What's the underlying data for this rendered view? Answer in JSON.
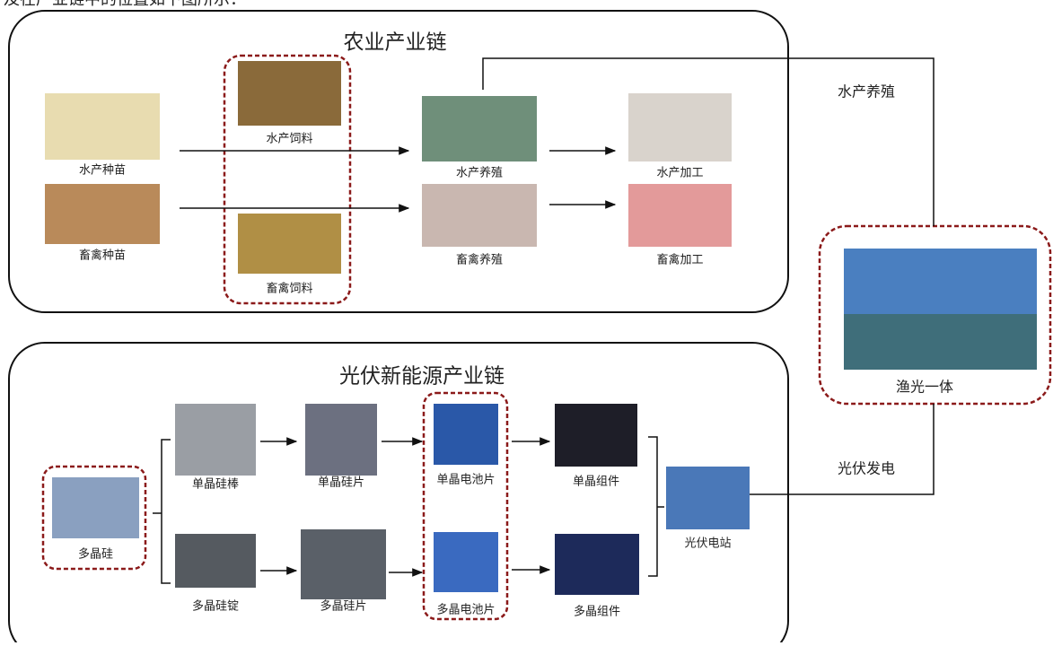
{
  "header": "及在产业链中的位置如下图所示：",
  "agriculture": {
    "title": "农业产业链",
    "nodes": [
      "水产种苗",
      "畜禽种苗",
      "水产饲料",
      "畜禽饲料",
      "水产养殖",
      "畜禽养殖",
      "水产加工",
      "畜禽加工"
    ]
  },
  "pv": {
    "title": "光伏新能源产业链",
    "nodes": [
      "多晶硅",
      "单晶硅棒",
      "多晶硅锭",
      "单晶硅片",
      "多晶硅片",
      "单晶电池片",
      "多晶电池片",
      "单晶组件",
      "多晶组件",
      "光伏电站"
    ]
  },
  "integration": {
    "label": "渔光一体",
    "links": [
      "水产养殖",
      "光伏发电"
    ]
  }
}
